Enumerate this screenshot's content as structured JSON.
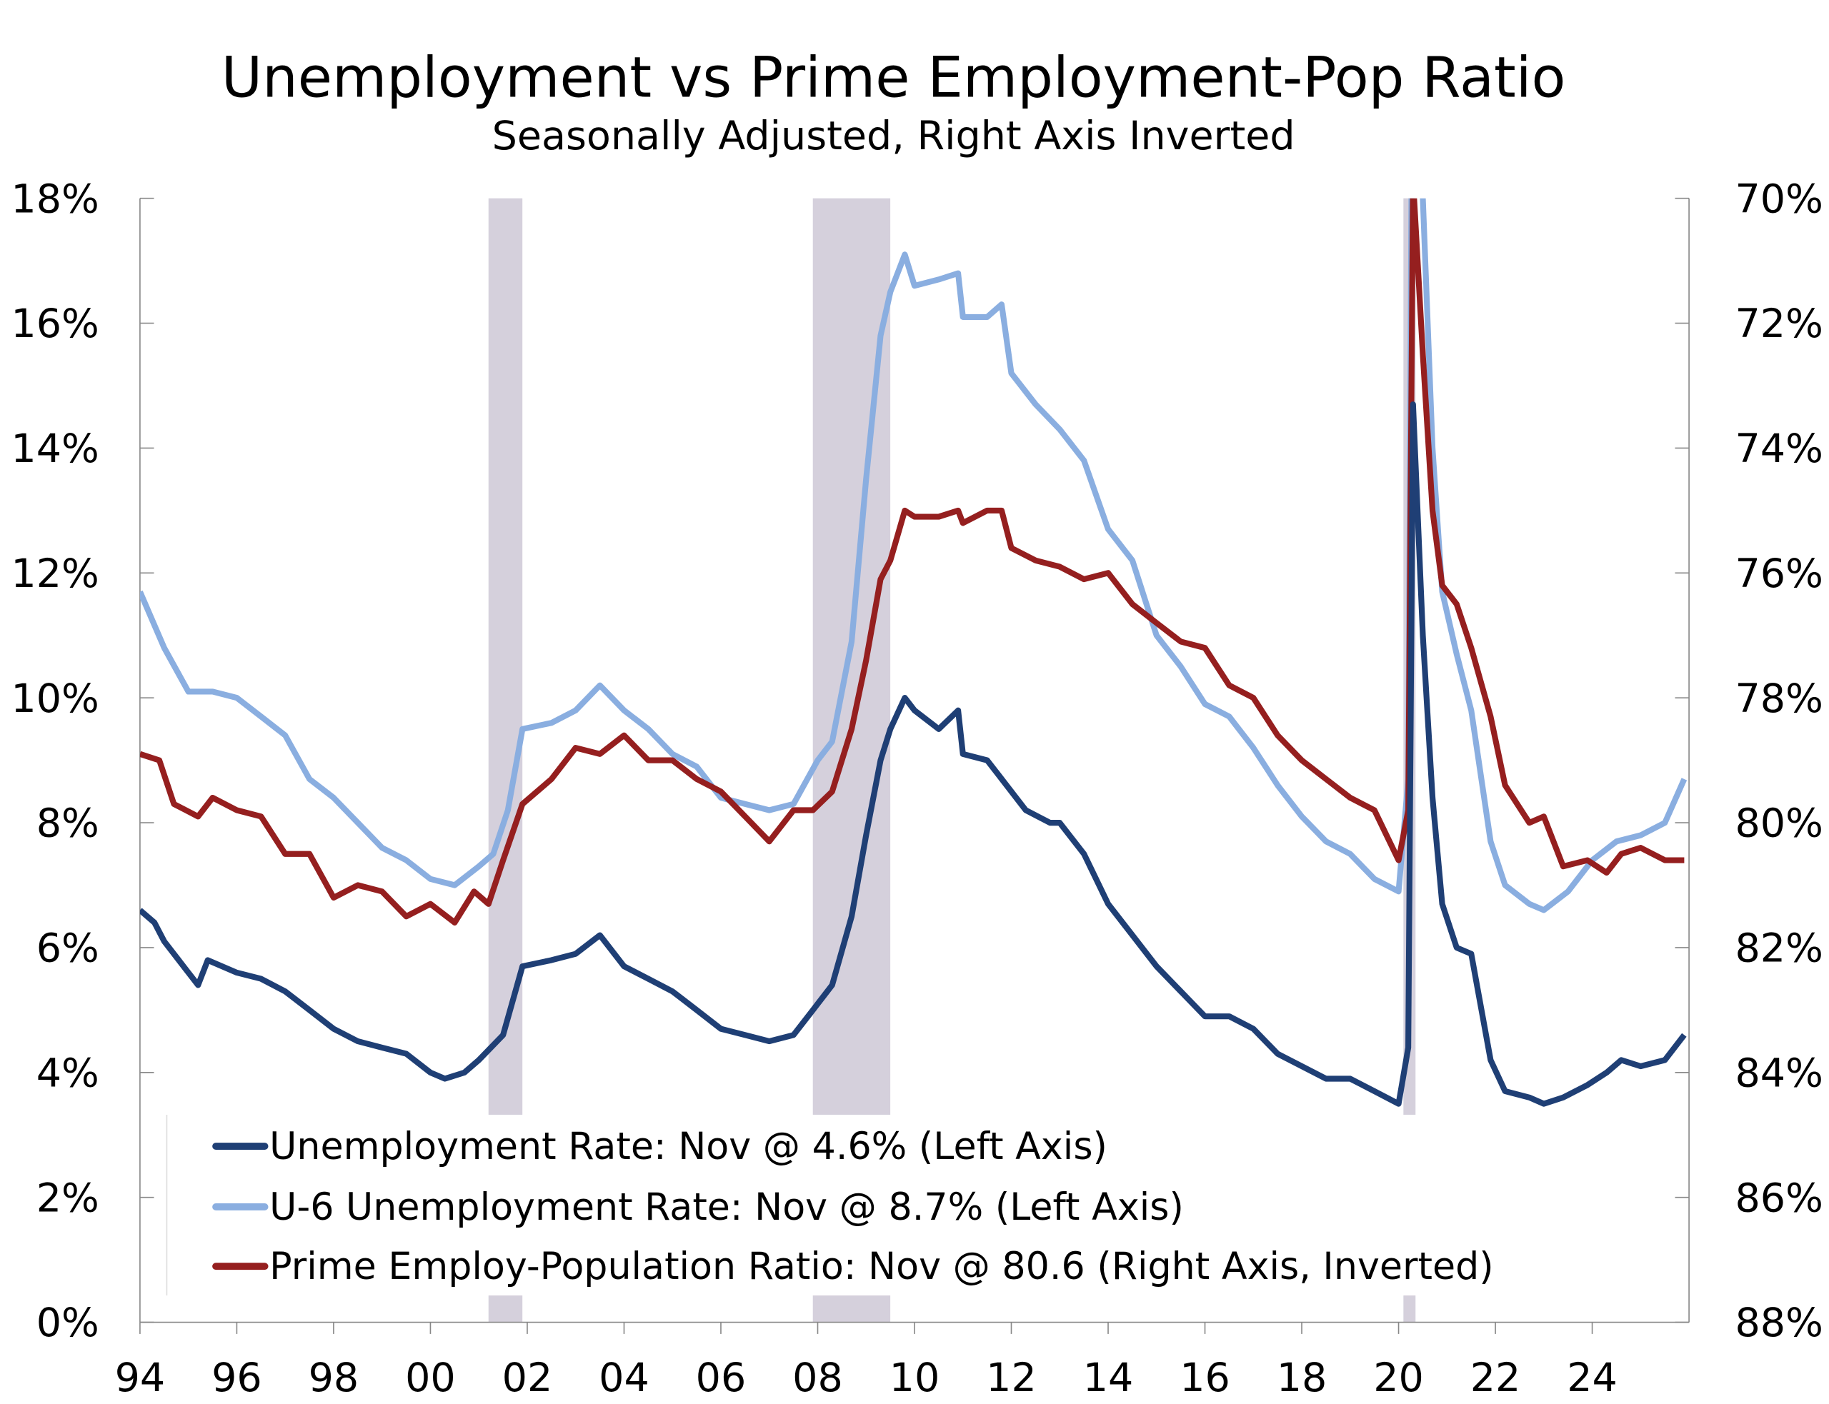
{
  "chart_data": {
    "type": "line",
    "title": "Unemployment vs Prime Employment-Pop Ratio",
    "subtitle": "Seasonally Adjusted, Right Axis Inverted",
    "xlim": [
      1994,
      2026
    ],
    "ylim_left": [
      0,
      18
    ],
    "ylim_right": [
      88,
      70
    ],
    "right_axis_inverted": true,
    "x_ticks": [
      1994,
      1996,
      1998,
      2000,
      2002,
      2004,
      2006,
      2008,
      2010,
      2012,
      2014,
      2016,
      2018,
      2020,
      2022,
      2024
    ],
    "x_tick_labels": [
      "94",
      "96",
      "98",
      "00",
      "02",
      "04",
      "06",
      "08",
      "10",
      "12",
      "14",
      "16",
      "18",
      "20",
      "22",
      "24"
    ],
    "y_left_ticks": [
      0,
      2,
      4,
      6,
      8,
      10,
      12,
      14,
      16,
      18
    ],
    "y_left_tick_labels": [
      "0%",
      "2%",
      "4%",
      "6%",
      "8%",
      "10%",
      "12%",
      "14%",
      "16%",
      "18%"
    ],
    "y_right_ticks": [
      88,
      86,
      84,
      82,
      80,
      78,
      76,
      74,
      72,
      70
    ],
    "y_right_tick_labels": [
      "88%",
      "86%",
      "84%",
      "82%",
      "80%",
      "78%",
      "76%",
      "74%",
      "72%",
      "70%"
    ],
    "recessions": [
      [
        2001.2,
        2001.9
      ],
      [
        2007.9,
        2009.5
      ],
      [
        2020.1,
        2020.35
      ]
    ],
    "legend_position": "bottom-left",
    "colors": {
      "unemployment": "#1f3f75",
      "u6": "#8aaee0",
      "epop": "#951f1f",
      "recession": "#d5d0dc"
    },
    "series": [
      {
        "name": "Unemployment Rate: Nov @ 4.6% (Left Axis)",
        "axis": "left",
        "color_key": "unemployment",
        "x": [
          1994.0,
          1994.3,
          1994.5,
          1995.0,
          1995.2,
          1995.4,
          1996.0,
          1996.5,
          1997.0,
          1997.5,
          1998.0,
          1998.5,
          1999.0,
          1999.5,
          2000.0,
          2000.3,
          2000.7,
          2001.0,
          2001.5,
          2001.9,
          2002.5,
          2003.0,
          2003.5,
          2004.0,
          2004.5,
          2005.0,
          2005.5,
          2006.0,
          2006.5,
          2007.0,
          2007.5,
          2007.9,
          2008.3,
          2008.7,
          2009.0,
          2009.3,
          2009.5,
          2009.8,
          2010.0,
          2010.5,
          2010.9,
          2011.0,
          2011.5,
          2011.9,
          2012.3,
          2012.8,
          2013.0,
          2013.5,
          2014.0,
          2014.5,
          2015.0,
          2015.5,
          2016.0,
          2016.5,
          2017.0,
          2017.5,
          2018.0,
          2018.5,
          2019.0,
          2019.5,
          2020.0,
          2020.2,
          2020.3,
          2020.5,
          2020.7,
          2020.9,
          2021.2,
          2021.5,
          2021.9,
          2022.2,
          2022.7,
          2023.0,
          2023.4,
          2023.9,
          2024.3,
          2024.6,
          2025.0,
          2025.5,
          2025.9
        ],
        "y": [
          6.6,
          6.4,
          6.1,
          5.6,
          5.4,
          5.8,
          5.6,
          5.5,
          5.3,
          5.0,
          4.7,
          4.5,
          4.4,
          4.3,
          4.0,
          3.9,
          4.0,
          4.2,
          4.6,
          5.7,
          5.8,
          5.9,
          6.2,
          5.7,
          5.5,
          5.3,
          5.0,
          4.7,
          4.6,
          4.5,
          4.6,
          5.0,
          5.4,
          6.5,
          7.8,
          9.0,
          9.5,
          10.0,
          9.8,
          9.5,
          9.8,
          9.1,
          9.0,
          8.6,
          8.2,
          8.0,
          8.0,
          7.5,
          6.7,
          6.2,
          5.7,
          5.3,
          4.9,
          4.9,
          4.7,
          4.3,
          4.1,
          3.9,
          3.9,
          3.7,
          3.5,
          4.4,
          14.7,
          11.0,
          8.4,
          6.7,
          6.0,
          5.9,
          4.2,
          3.7,
          3.6,
          3.5,
          3.6,
          3.8,
          4.0,
          4.2,
          4.1,
          4.2,
          4.6
        ]
      },
      {
        "name": "U-6 Unemployment Rate: Nov @ 8.7% (Left Axis)",
        "axis": "left",
        "color_key": "u6",
        "x": [
          1994.0,
          1994.5,
          1995.0,
          1995.5,
          1996.0,
          1996.5,
          1997.0,
          1997.5,
          1998.0,
          1998.5,
          1999.0,
          1999.5,
          2000.0,
          2000.5,
          2001.0,
          2001.3,
          2001.6,
          2001.9,
          2002.5,
          2003.0,
          2003.5,
          2004.0,
          2004.5,
          2005.0,
          2005.5,
          2006.0,
          2006.5,
          2007.0,
          2007.5,
          2008.0,
          2008.3,
          2008.7,
          2009.0,
          2009.3,
          2009.5,
          2009.8,
          2010.0,
          2010.5,
          2010.9,
          2011.0,
          2011.5,
          2011.8,
          2012.0,
          2012.5,
          2013.0,
          2013.5,
          2014.0,
          2014.5,
          2015.0,
          2015.5,
          2016.0,
          2016.5,
          2017.0,
          2017.5,
          2018.0,
          2018.5,
          2019.0,
          2019.5,
          2020.0,
          2020.2,
          2020.3,
          2020.5,
          2020.7,
          2020.9,
          2021.2,
          2021.5,
          2021.9,
          2022.2,
          2022.7,
          2023.0,
          2023.5,
          2024.0,
          2024.5,
          2025.0,
          2025.5,
          2025.9
        ],
        "y": [
          11.7,
          10.8,
          10.1,
          10.1,
          10.0,
          9.7,
          9.4,
          8.7,
          8.4,
          8.0,
          7.6,
          7.4,
          7.1,
          7.0,
          7.3,
          7.5,
          8.2,
          9.5,
          9.6,
          9.8,
          10.2,
          9.8,
          9.5,
          9.1,
          8.9,
          8.4,
          8.3,
          8.2,
          8.3,
          9.0,
          9.3,
          10.9,
          13.5,
          15.8,
          16.5,
          17.1,
          16.6,
          16.7,
          16.8,
          16.1,
          16.1,
          16.3,
          15.2,
          14.7,
          14.3,
          13.8,
          12.7,
          12.2,
          11.0,
          10.5,
          9.9,
          9.7,
          9.2,
          8.6,
          8.1,
          7.7,
          7.5,
          7.1,
          6.9,
          8.7,
          22.8,
          18.0,
          14.0,
          11.7,
          10.7,
          9.8,
          7.7,
          7.0,
          6.7,
          6.6,
          6.9,
          7.4,
          7.7,
          7.8,
          8.0,
          8.7
        ]
      },
      {
        "name": "Prime Employ-Population Ratio: Nov @ 80.6 (Right Axis, Inverted)",
        "axis": "right",
        "color_key": "epop",
        "x": [
          1994.0,
          1994.4,
          1994.7,
          1995.2,
          1995.5,
          1996.0,
          1996.5,
          1997.0,
          1997.5,
          1998.0,
          1998.5,
          1999.0,
          1999.5,
          2000.0,
          2000.5,
          2000.9,
          2001.2,
          2001.5,
          2001.9,
          2002.5,
          2003.0,
          2003.5,
          2004.0,
          2004.5,
          2005.0,
          2005.5,
          2006.0,
          2006.5,
          2007.0,
          2007.5,
          2007.9,
          2008.3,
          2008.7,
          2009.0,
          2009.3,
          2009.5,
          2009.8,
          2010.0,
          2010.5,
          2010.9,
          2011.0,
          2011.5,
          2011.8,
          2012.0,
          2012.5,
          2013.0,
          2013.5,
          2014.0,
          2014.5,
          2015.0,
          2015.5,
          2016.0,
          2016.5,
          2017.0,
          2017.5,
          2018.0,
          2018.5,
          2019.0,
          2019.5,
          2020.0,
          2020.2,
          2020.3,
          2020.5,
          2020.7,
          2020.9,
          2021.2,
          2021.5,
          2021.9,
          2022.2,
          2022.7,
          2023.0,
          2023.4,
          2023.9,
          2024.3,
          2024.6,
          2025.0,
          2025.5,
          2025.9
        ],
        "y": [
          78.9,
          79.0,
          79.7,
          79.9,
          79.6,
          79.8,
          79.9,
          80.5,
          80.5,
          81.2,
          81.0,
          81.1,
          81.5,
          81.3,
          81.6,
          81.1,
          81.3,
          80.6,
          79.7,
          79.3,
          78.8,
          78.9,
          78.6,
          79.0,
          79.0,
          79.3,
          79.5,
          79.9,
          80.3,
          79.8,
          79.8,
          79.5,
          78.5,
          77.4,
          76.1,
          75.8,
          75.0,
          75.1,
          75.1,
          75.0,
          75.2,
          75.0,
          75.0,
          75.6,
          75.8,
          75.9,
          76.1,
          76.0,
          76.5,
          76.8,
          77.1,
          77.2,
          77.8,
          78.0,
          78.6,
          79.0,
          79.3,
          79.6,
          79.8,
          80.6,
          79.8,
          69.7,
          72.5,
          75.0,
          76.2,
          76.5,
          77.2,
          78.3,
          79.4,
          80.0,
          79.9,
          80.7,
          80.6,
          80.8,
          80.5,
          80.4,
          80.6,
          80.6
        ]
      }
    ]
  }
}
